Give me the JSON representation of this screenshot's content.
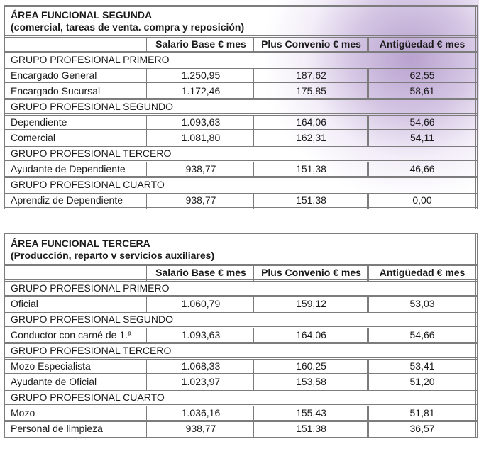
{
  "columns": [
    "Salario Base € mes",
    "Plus Convenio € mes",
    "Antigüedad € mes"
  ],
  "accent_color": "#a58ac4",
  "tables": [
    {
      "title": "ÁREA FUNCIONAL SEGUNDA",
      "subtitle": "(comercial, tareas de venta. compra y reposición)",
      "groups": [
        {
          "name": "GRUPO PROFESIONAL PRIMERO",
          "rows": [
            {
              "label": "Encargado General",
              "values": [
                "1.250,95",
                "187,62",
                "62,55"
              ]
            },
            {
              "label": "Encargado Sucursal",
              "values": [
                "1.172,46",
                "175,85",
                "58,61"
              ]
            }
          ]
        },
        {
          "name": "GRUPO PROFESIONAL SEGUNDO",
          "rows": [
            {
              "label": "Dependiente",
              "values": [
                "1.093,63",
                "164,06",
                "54,66"
              ]
            },
            {
              "label": "Comercial",
              "values": [
                "1.081,80",
                "162,31",
                "54,11"
              ]
            }
          ]
        },
        {
          "name": "GRUPO PROFESIONAL TERCERO",
          "rows": [
            {
              "label": "Ayudante de Dependiente",
              "values": [
                "938,77",
                "151,38",
                "46,66"
              ]
            }
          ]
        },
        {
          "name": "GRUPO PROFESIONAL CUARTO",
          "rows": [
            {
              "label": "Aprendiz de Dependiente",
              "values": [
                "938,77",
                "151,38",
                "0,00"
              ]
            }
          ]
        }
      ]
    },
    {
      "title": "ÁREA FUNCIONAL TERCERA",
      "subtitle": "(Producción, reparto v servicios auxiliares)",
      "groups": [
        {
          "name": "GRUPO PROFESIONAL PRIMERO",
          "rows": [
            {
              "label": "Oficial",
              "values": [
                "1.060,79",
                "159,12",
                "53,03"
              ]
            }
          ]
        },
        {
          "name": "GRUPO PROFESIONAL SEGUNDO",
          "rows": [
            {
              "label": "Conductor con carné de 1.ª",
              "values": [
                "1.093,63",
                "164,06",
                "54,66"
              ]
            }
          ]
        },
        {
          "name": "GRUPO PROFESIONAL TERCERO",
          "rows": [
            {
              "label": "Mozo Especialista",
              "values": [
                "1.068,33",
                "160,25",
                "53,41"
              ]
            },
            {
              "label": "Ayudante de Oficial",
              "values": [
                "1.023,97",
                "153,58",
                "51,20"
              ]
            }
          ]
        },
        {
          "name": "GRUPO PROFESIONAL CUARTO",
          "rows": [
            {
              "label": "Mozo",
              "values": [
                "1.036,16",
                "155,43",
                "51,81"
              ]
            },
            {
              "label": "Personal de limpieza",
              "values": [
                "938,77",
                "151,38",
                "36,57"
              ]
            }
          ]
        }
      ]
    }
  ]
}
